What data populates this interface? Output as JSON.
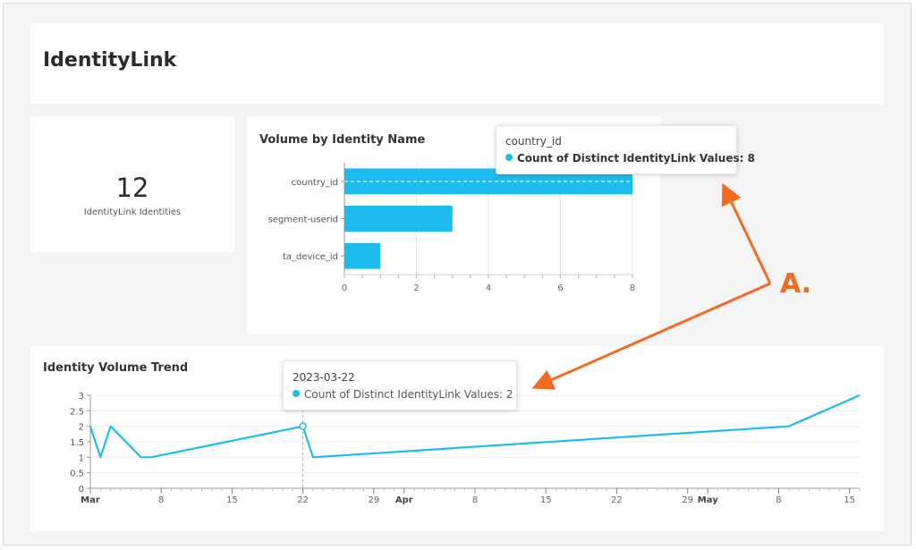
{
  "page": {
    "title": "IdentityLink"
  },
  "kpi": {
    "value": "12",
    "label": "IdentityLink Identities"
  },
  "colors": {
    "series": "#1cbcee",
    "annotation": "#f26b21"
  },
  "tooltip_bars": {
    "category": "country_id",
    "measure_label": "Count of Distinct IdentityLink Values: 8"
  },
  "tooltip_trend": {
    "date": "2023-03-22",
    "measure_label": "Count of Distinct IdentityLink Values: 2"
  },
  "annotation": {
    "label": "A."
  },
  "chart_data": [
    {
      "type": "bar",
      "orientation": "horizontal",
      "title": "Volume by Identity Name",
      "categories": [
        "country_id",
        "segment-userid",
        "ta_device_id"
      ],
      "values": [
        8,
        3,
        1
      ],
      "xlim": [
        0,
        8
      ],
      "xticks": [
        "0",
        "2",
        "4",
        "6",
        "8"
      ],
      "grid": true
    },
    {
      "type": "line",
      "title": "Identity Volume Trend",
      "x": [
        "2023-03-01",
        "2023-03-02",
        "2023-03-03",
        "2023-03-06",
        "2023-03-07",
        "2023-03-22",
        "2023-03-23",
        "2023-05-09",
        "2023-05-16"
      ],
      "y": [
        2,
        1,
        2,
        1,
        1,
        2,
        1,
        2,
        3
      ],
      "xlim": [
        "2023-03-01",
        "2023-05-16"
      ],
      "ylim": [
        0,
        3
      ],
      "yticks": [
        "0",
        "0.5",
        "1",
        "1.5",
        "2",
        "2.5",
        "3"
      ],
      "xticks": [
        {
          "label": "Mar",
          "date": "2023-03-01",
          "major": true
        },
        {
          "label": "8",
          "date": "2023-03-08",
          "major": false
        },
        {
          "label": "15",
          "date": "2023-03-15",
          "major": false
        },
        {
          "label": "22",
          "date": "2023-03-22",
          "major": false
        },
        {
          "label": "29",
          "date": "2023-03-29",
          "major": false
        },
        {
          "label": "Apr",
          "date": "2023-04-01",
          "major": true
        },
        {
          "label": "8",
          "date": "2023-04-08",
          "major": false
        },
        {
          "label": "15",
          "date": "2023-04-15",
          "major": false
        },
        {
          "label": "22",
          "date": "2023-04-22",
          "major": false
        },
        {
          "label": "29",
          "date": "2023-04-29",
          "major": false
        },
        {
          "label": "May",
          "date": "2023-05-01",
          "major": true
        },
        {
          "label": "8",
          "date": "2023-05-08",
          "major": false
        },
        {
          "label": "15",
          "date": "2023-05-15",
          "major": false
        }
      ],
      "highlight": "2023-03-22",
      "grid": true
    }
  ]
}
